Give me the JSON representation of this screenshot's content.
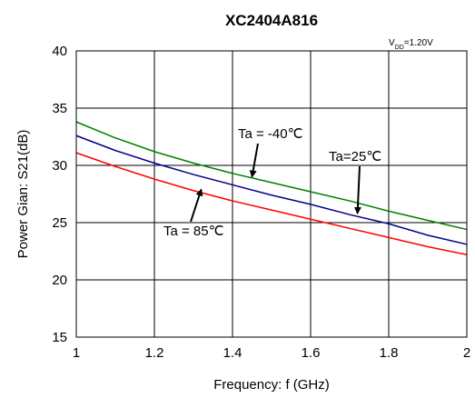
{
  "chart_data": {
    "type": "line",
    "title": "XC2404A816",
    "subtitle": "V_DD=1.20V",
    "subtitle_main": "V",
    "subtitle_sub": "DD",
    "subtitle_rest": "=1.20V",
    "xlabel": "Frequency: f (GHz)",
    "ylabel": "Power Gian:  S21(dB)",
    "xlim": [
      1,
      2
    ],
    "ylim": [
      15,
      40
    ],
    "xticks": [
      "1",
      "1.2",
      "1.4",
      "1.6",
      "1.8",
      "2"
    ],
    "yticks": [
      "15",
      "20",
      "25",
      "30",
      "35",
      "40"
    ],
    "grid": true,
    "series": [
      {
        "name": "Ta = -40℃",
        "color": "#008000",
        "x": [
          1.0,
          1.1,
          1.2,
          1.3,
          1.4,
          1.5,
          1.6,
          1.7,
          1.8,
          1.9,
          2.0
        ],
        "y": [
          33.8,
          32.4,
          31.2,
          30.2,
          29.3,
          28.5,
          27.7,
          26.9,
          26.0,
          25.2,
          24.4
        ]
      },
      {
        "name": "Ta=25℃",
        "color": "#00008B",
        "x": [
          1.0,
          1.1,
          1.2,
          1.3,
          1.4,
          1.5,
          1.6,
          1.7,
          1.8,
          1.9,
          2.0
        ],
        "y": [
          32.6,
          31.3,
          30.2,
          29.2,
          28.3,
          27.4,
          26.6,
          25.7,
          24.9,
          23.9,
          23.1
        ]
      },
      {
        "name": "Ta = 85℃",
        "color": "#FF0000",
        "x": [
          1.0,
          1.1,
          1.2,
          1.3,
          1.4,
          1.5,
          1.6,
          1.7,
          1.8,
          1.9,
          2.0
        ],
        "y": [
          31.1,
          29.9,
          28.8,
          27.8,
          26.9,
          26.1,
          25.3,
          24.5,
          23.7,
          22.9,
          22.2
        ]
      }
    ],
    "annotations": [
      {
        "text": "Ta = -40℃",
        "pointer_to": {
          "x": 1.45,
          "y": 29.0
        }
      },
      {
        "text": "Ta=25℃",
        "pointer_to": {
          "x": 1.72,
          "y": 25.8
        }
      },
      {
        "text": "Ta = 85℃",
        "pointer_to": {
          "x": 1.32,
          "y": 27.9
        }
      }
    ]
  }
}
